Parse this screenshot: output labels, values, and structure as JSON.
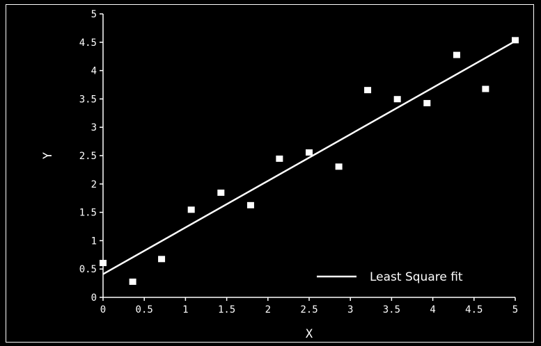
{
  "chart_data": {
    "type": "scatter",
    "xlabel": "X",
    "ylabel": "Y",
    "xlim": [
      0,
      5
    ],
    "ylim": [
      0,
      5
    ],
    "xticks": [
      "0",
      "0.5",
      "1",
      "1.5",
      "2",
      "2.5",
      "3",
      "3.5",
      "4",
      "4.5",
      "5"
    ],
    "yticks": [
      "0",
      "0.5",
      "1",
      "1.5",
      "2",
      "2.5",
      "3",
      "3.5",
      "4",
      "4.5",
      "5"
    ],
    "grid": false,
    "legend_position": "bottom-right",
    "background": "#000000",
    "foreground": "#ffffff",
    "series": [
      {
        "kind": "points",
        "x": [
          0.0,
          0.36,
          0.71,
          1.07,
          1.43,
          1.79,
          2.14,
          2.5,
          2.86,
          3.21,
          3.57,
          3.93,
          4.29,
          4.64,
          5.0
        ],
        "y": [
          0.6,
          0.27,
          0.67,
          1.54,
          1.84,
          1.62,
          2.44,
          2.55,
          2.3,
          3.65,
          3.49,
          3.42,
          4.27,
          3.67,
          4.53
        ]
      },
      {
        "kind": "line",
        "name": "Least Square fit",
        "x": [
          0,
          5
        ],
        "y": [
          0.41,
          4.52
        ]
      }
    ]
  }
}
